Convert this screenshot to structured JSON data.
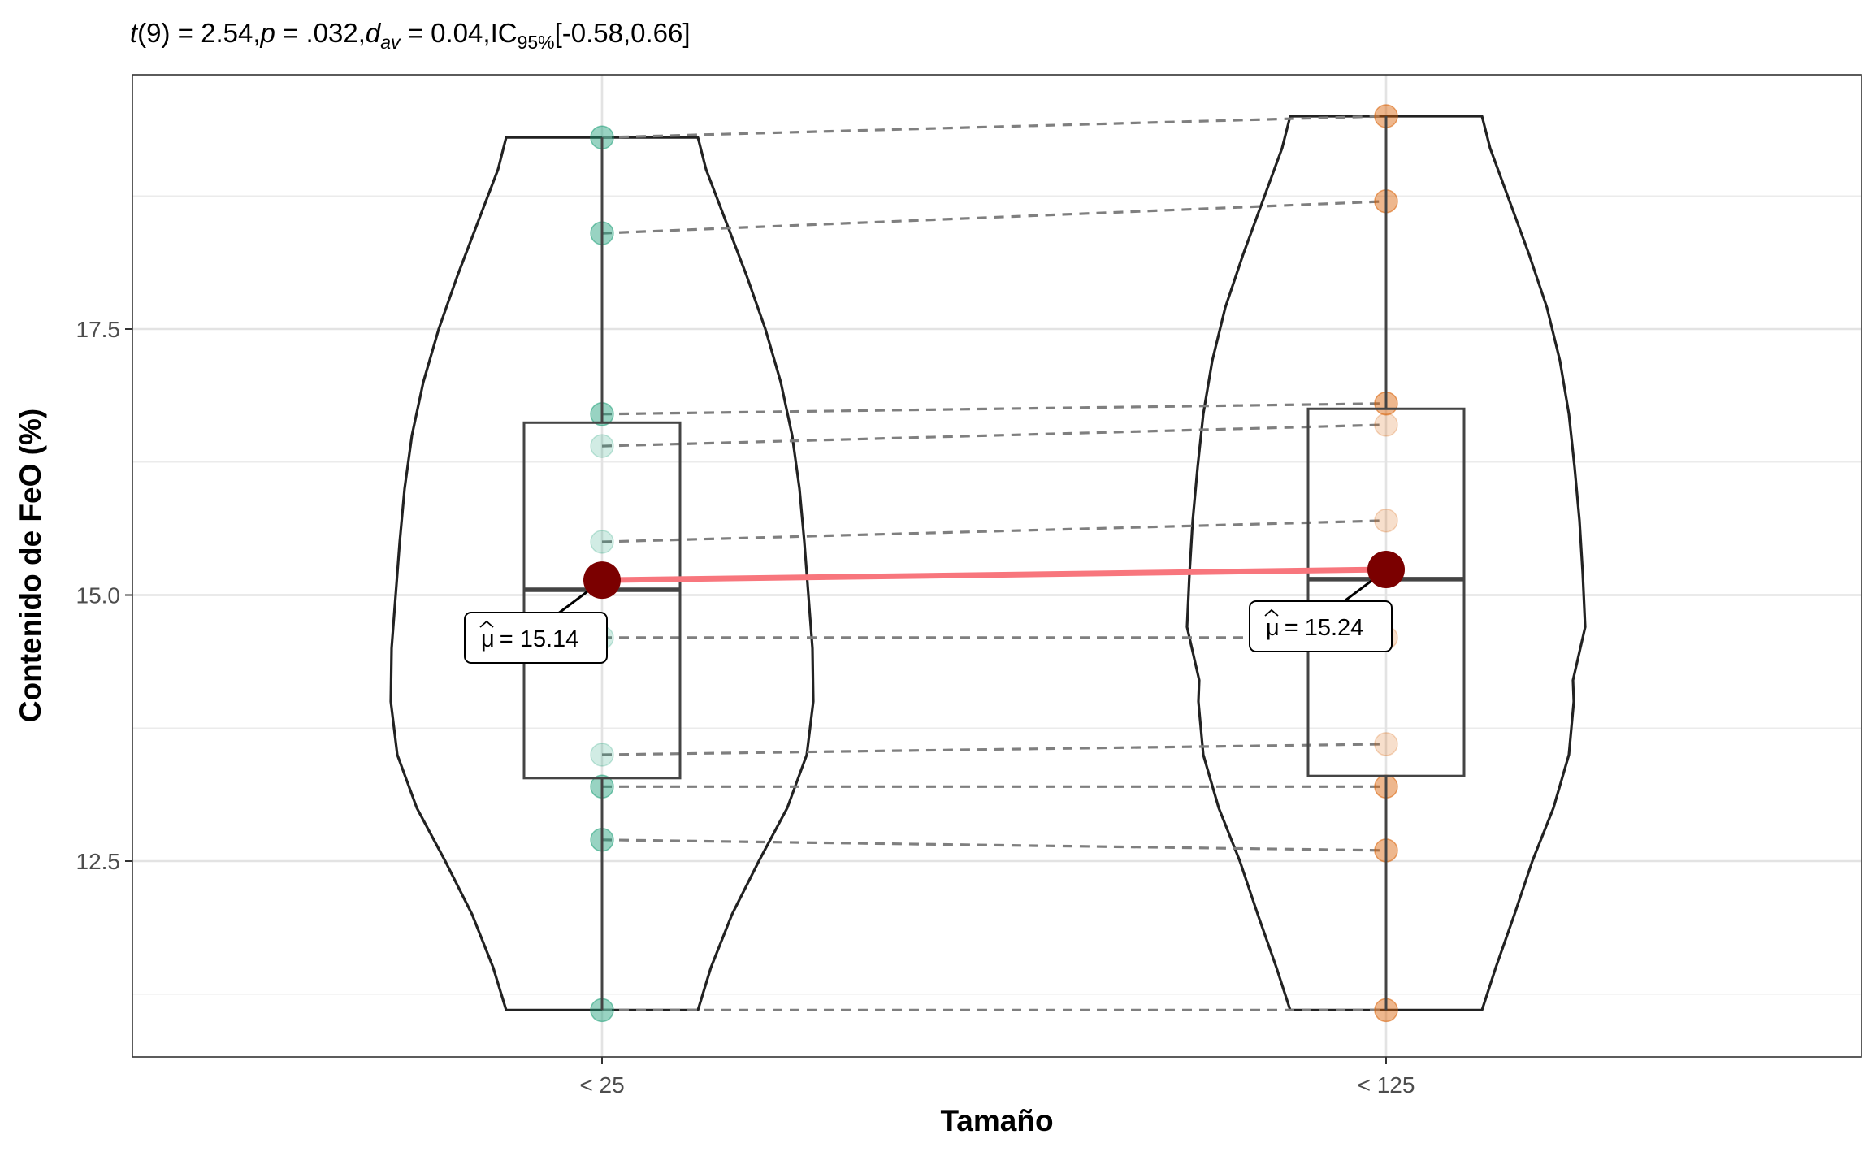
{
  "chart_data": {
    "type": "violin-box-paired",
    "subtitle": {
      "t_part": "t",
      "df_part": "(9) = 2.54,",
      "p_part": "p",
      "p_val": " = .032,",
      "d_part": "d",
      "d_sub": "av",
      "d_val": " = 0.04,",
      "ic_part": "IC",
      "ic_sub": "95%",
      "ic_val": "[-0.58,0.66]"
    },
    "xlabel": "Tamaño",
    "ylabel": "Contenido de FeO (%)",
    "categories": [
      "< 25",
      "< 125"
    ],
    "ylim": [
      10.7,
      19.9
    ],
    "yticks": [
      12.5,
      15.0,
      17.5
    ],
    "ytick_labels": [
      "12.5",
      "15.0",
      "17.5"
    ],
    "grid": true,
    "series": [
      {
        "name": "< 25",
        "color": "#1b9e77",
        "values": [
          19.3,
          18.4,
          16.7,
          16.4,
          15.5,
          14.6,
          13.5,
          13.2,
          12.7,
          11.1
        ],
        "box": {
          "q1": 13.28,
          "median": 15.05,
          "q3": 16.62
        },
        "mean": 15.14,
        "mean_label": "= 15.14"
      },
      {
        "name": "< 125",
        "color": "#d95f02",
        "values": [
          19.5,
          18.7,
          16.8,
          16.6,
          15.7,
          14.6,
          13.6,
          13.2,
          12.6,
          11.1
        ],
        "box": {
          "q1": 13.3,
          "median": 15.15,
          "q3": 16.75
        },
        "mean": 15.24,
        "mean_label": "= 15.24"
      }
    ],
    "mu_symbol": "μ",
    "mean_line_color": "#f8767d",
    "mean_point_color": "#7b0000"
  }
}
